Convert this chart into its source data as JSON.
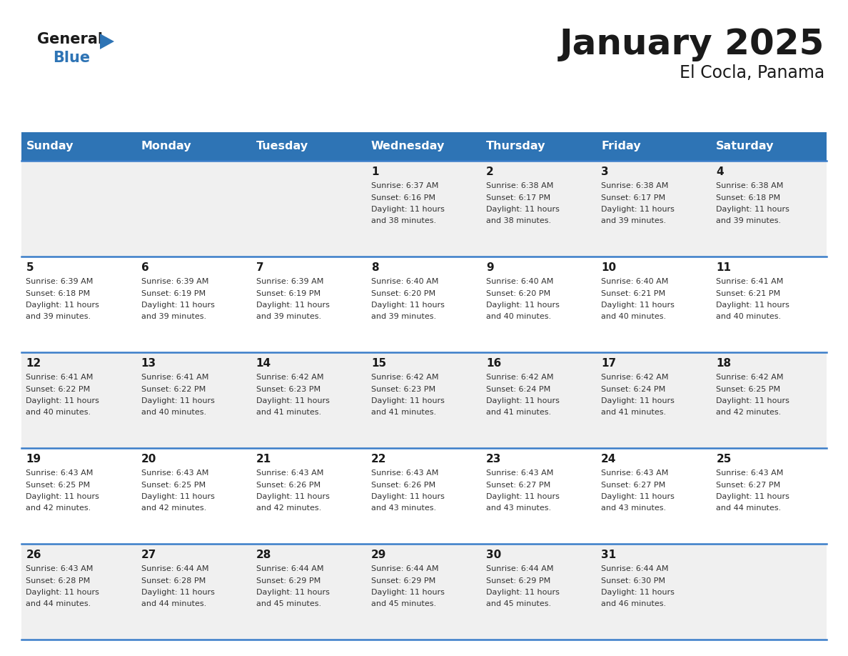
{
  "title": "January 2025",
  "subtitle": "El Cocla, Panama",
  "header_color": "#2E74B5",
  "header_text_color": "#FFFFFF",
  "day_names": [
    "Sunday",
    "Monday",
    "Tuesday",
    "Wednesday",
    "Thursday",
    "Friday",
    "Saturday"
  ],
  "cell_bg_odd": "#F0F0F0",
  "cell_bg_even": "#FFFFFF",
  "divider_color": "#3A7DC9",
  "title_color": "#1a1a1a",
  "subtitle_color": "#1a1a1a",
  "num_color": "#1a1a1a",
  "text_color": "#333333",
  "logo_black": "#1a1a1a",
  "logo_blue": "#2E74B5",
  "calendar": [
    [
      {
        "day": "",
        "sunrise": "",
        "sunset": "",
        "daylight": ""
      },
      {
        "day": "",
        "sunrise": "",
        "sunset": "",
        "daylight": ""
      },
      {
        "day": "",
        "sunrise": "",
        "sunset": "",
        "daylight": ""
      },
      {
        "day": "1",
        "sunrise": "6:37 AM",
        "sunset": "6:16 PM",
        "daylight": "11 hours and 38 minutes."
      },
      {
        "day": "2",
        "sunrise": "6:38 AM",
        "sunset": "6:17 PM",
        "daylight": "11 hours and 38 minutes."
      },
      {
        "day": "3",
        "sunrise": "6:38 AM",
        "sunset": "6:17 PM",
        "daylight": "11 hours and 39 minutes."
      },
      {
        "day": "4",
        "sunrise": "6:38 AM",
        "sunset": "6:18 PM",
        "daylight": "11 hours and 39 minutes."
      }
    ],
    [
      {
        "day": "5",
        "sunrise": "6:39 AM",
        "sunset": "6:18 PM",
        "daylight": "11 hours and 39 minutes."
      },
      {
        "day": "6",
        "sunrise": "6:39 AM",
        "sunset": "6:19 PM",
        "daylight": "11 hours and 39 minutes."
      },
      {
        "day": "7",
        "sunrise": "6:39 AM",
        "sunset": "6:19 PM",
        "daylight": "11 hours and 39 minutes."
      },
      {
        "day": "8",
        "sunrise": "6:40 AM",
        "sunset": "6:20 PM",
        "daylight": "11 hours and 39 minutes."
      },
      {
        "day": "9",
        "sunrise": "6:40 AM",
        "sunset": "6:20 PM",
        "daylight": "11 hours and 40 minutes."
      },
      {
        "day": "10",
        "sunrise": "6:40 AM",
        "sunset": "6:21 PM",
        "daylight": "11 hours and 40 minutes."
      },
      {
        "day": "11",
        "sunrise": "6:41 AM",
        "sunset": "6:21 PM",
        "daylight": "11 hours and 40 minutes."
      }
    ],
    [
      {
        "day": "12",
        "sunrise": "6:41 AM",
        "sunset": "6:22 PM",
        "daylight": "11 hours and 40 minutes."
      },
      {
        "day": "13",
        "sunrise": "6:41 AM",
        "sunset": "6:22 PM",
        "daylight": "11 hours and 40 minutes."
      },
      {
        "day": "14",
        "sunrise": "6:42 AM",
        "sunset": "6:23 PM",
        "daylight": "11 hours and 41 minutes."
      },
      {
        "day": "15",
        "sunrise": "6:42 AM",
        "sunset": "6:23 PM",
        "daylight": "11 hours and 41 minutes."
      },
      {
        "day": "16",
        "sunrise": "6:42 AM",
        "sunset": "6:24 PM",
        "daylight": "11 hours and 41 minutes."
      },
      {
        "day": "17",
        "sunrise": "6:42 AM",
        "sunset": "6:24 PM",
        "daylight": "11 hours and 41 minutes."
      },
      {
        "day": "18",
        "sunrise": "6:42 AM",
        "sunset": "6:25 PM",
        "daylight": "11 hours and 42 minutes."
      }
    ],
    [
      {
        "day": "19",
        "sunrise": "6:43 AM",
        "sunset": "6:25 PM",
        "daylight": "11 hours and 42 minutes."
      },
      {
        "day": "20",
        "sunrise": "6:43 AM",
        "sunset": "6:25 PM",
        "daylight": "11 hours and 42 minutes."
      },
      {
        "day": "21",
        "sunrise": "6:43 AM",
        "sunset": "6:26 PM",
        "daylight": "11 hours and 42 minutes."
      },
      {
        "day": "22",
        "sunrise": "6:43 AM",
        "sunset": "6:26 PM",
        "daylight": "11 hours and 43 minutes."
      },
      {
        "day": "23",
        "sunrise": "6:43 AM",
        "sunset": "6:27 PM",
        "daylight": "11 hours and 43 minutes."
      },
      {
        "day": "24",
        "sunrise": "6:43 AM",
        "sunset": "6:27 PM",
        "daylight": "11 hours and 43 minutes."
      },
      {
        "day": "25",
        "sunrise": "6:43 AM",
        "sunset": "6:27 PM",
        "daylight": "11 hours and 44 minutes."
      }
    ],
    [
      {
        "day": "26",
        "sunrise": "6:43 AM",
        "sunset": "6:28 PM",
        "daylight": "11 hours and 44 minutes."
      },
      {
        "day": "27",
        "sunrise": "6:44 AM",
        "sunset": "6:28 PM",
        "daylight": "11 hours and 44 minutes."
      },
      {
        "day": "28",
        "sunrise": "6:44 AM",
        "sunset": "6:29 PM",
        "daylight": "11 hours and 45 minutes."
      },
      {
        "day": "29",
        "sunrise": "6:44 AM",
        "sunset": "6:29 PM",
        "daylight": "11 hours and 45 minutes."
      },
      {
        "day": "30",
        "sunrise": "6:44 AM",
        "sunset": "6:29 PM",
        "daylight": "11 hours and 45 minutes."
      },
      {
        "day": "31",
        "sunrise": "6:44 AM",
        "sunset": "6:30 PM",
        "daylight": "11 hours and 46 minutes."
      },
      {
        "day": "",
        "sunrise": "",
        "sunset": "",
        "daylight": ""
      }
    ]
  ]
}
